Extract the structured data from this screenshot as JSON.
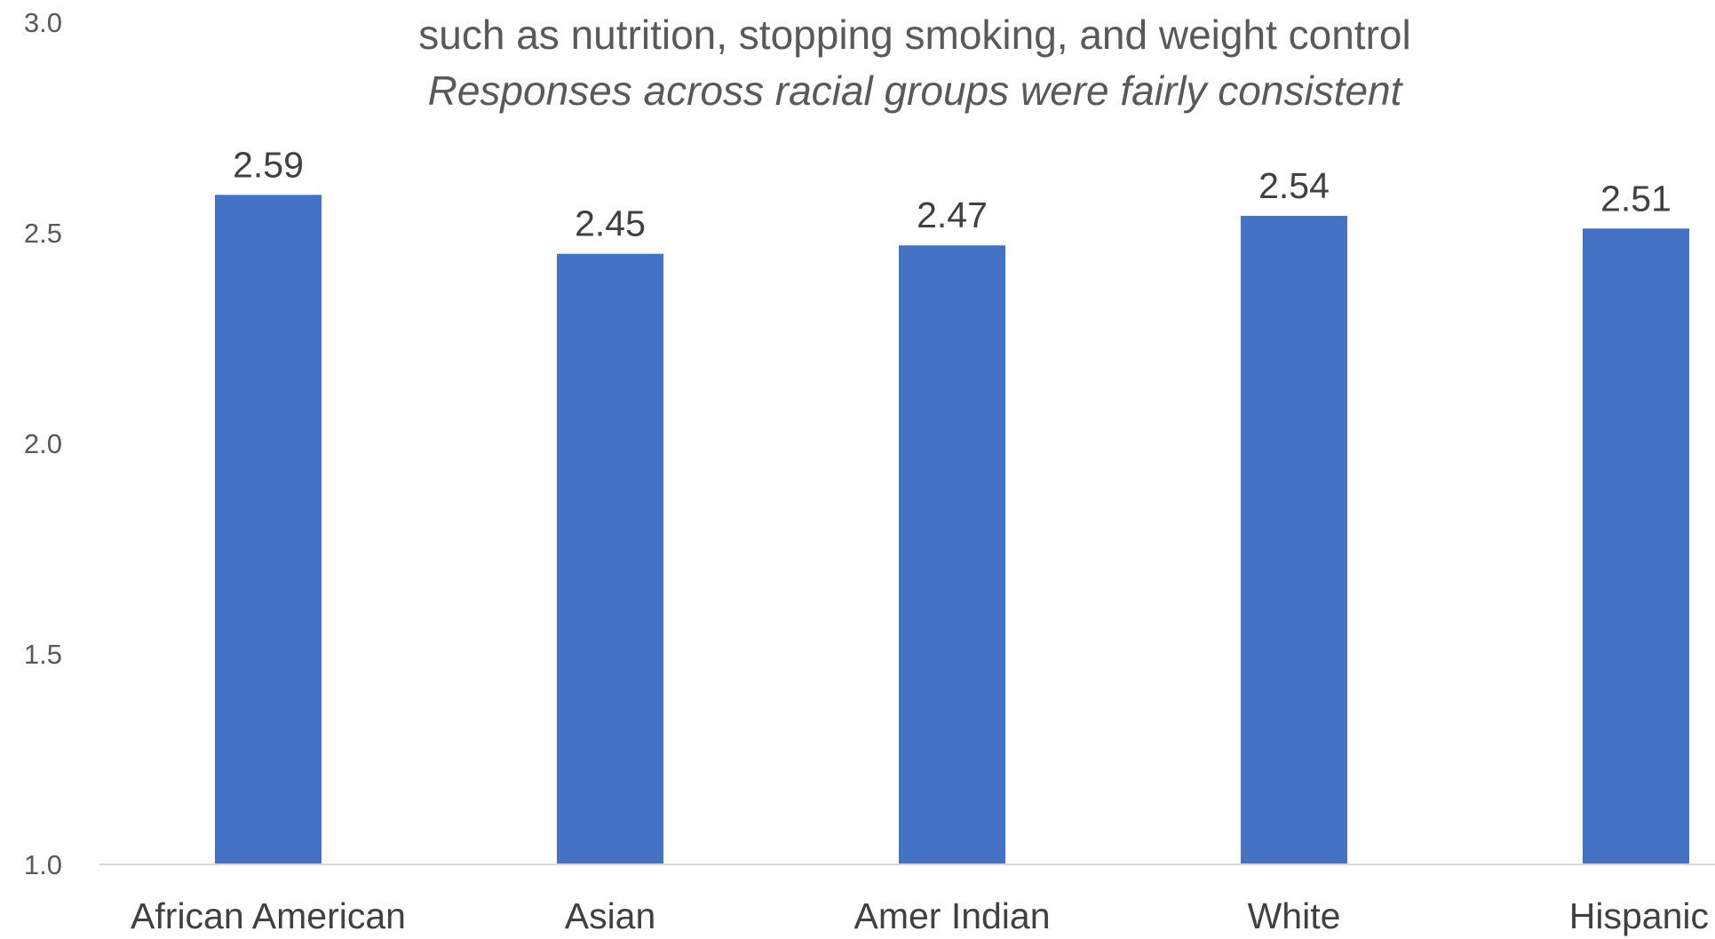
{
  "chart_data": {
    "type": "bar",
    "title": "such as nutrition, stopping smoking, and weight control",
    "subtitle": "Responses across racial groups were fairly consistent",
    "categories": [
      "African American",
      "Asian",
      "Amer Indian",
      "White",
      "Hispanic"
    ],
    "values": [
      2.59,
      2.45,
      2.47,
      2.54,
      2.51
    ],
    "value_labels": [
      "2.59",
      "2.45",
      "2.47",
      "2.54",
      "2.51"
    ],
    "yticks": [
      1.0,
      1.5,
      2.0,
      2.5,
      3.0
    ],
    "ytick_labels": [
      "1.0",
      "1.5",
      "2.0",
      "2.5",
      "3.0"
    ],
    "ylim": [
      1.0,
      3.0
    ],
    "grid": false,
    "legend": "none",
    "colors": {
      "bar": "#4472C4",
      "axis": "#D9D9D9"
    }
  }
}
